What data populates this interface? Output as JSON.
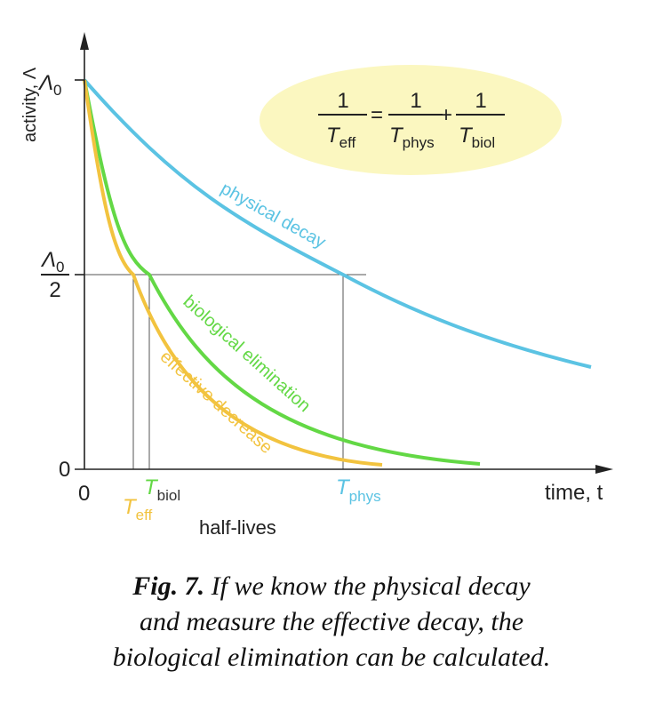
{
  "axes": {
    "y_label": "activity, Λ",
    "x_label": "time, t",
    "y_top": "Λ",
    "y_top_sub": "0",
    "y_half_num": "Λ",
    "y_half_num_sub": "0",
    "y_half_den": "2",
    "y_zero": "0",
    "x_zero": "0",
    "x_group_label": "half-lives"
  },
  "half_lives": {
    "eff": {
      "T": "T",
      "sub": "eff"
    },
    "biol": {
      "T": "T",
      "sub": "biol"
    },
    "phys": {
      "T": "T",
      "sub": "phys"
    }
  },
  "curves": {
    "physical": "physical decay",
    "biological": "biological elimination",
    "effective": "effective decrease"
  },
  "formula": {
    "one": "1",
    "eq": "=",
    "plus": "+",
    "T": "T",
    "eff": "eff",
    "phys": "phys",
    "biol": "biol"
  },
  "colors": {
    "physical": "#5bc3e3",
    "biological": "#63d845",
    "effective": "#f2c33f",
    "bubble": "#fbf7c0"
  },
  "caption": {
    "fig": "Fig. 7.",
    "line1": "If we know the physical decay",
    "line2": "and measure the effective decay, the",
    "line3": "biological elimination can be calculated."
  }
}
